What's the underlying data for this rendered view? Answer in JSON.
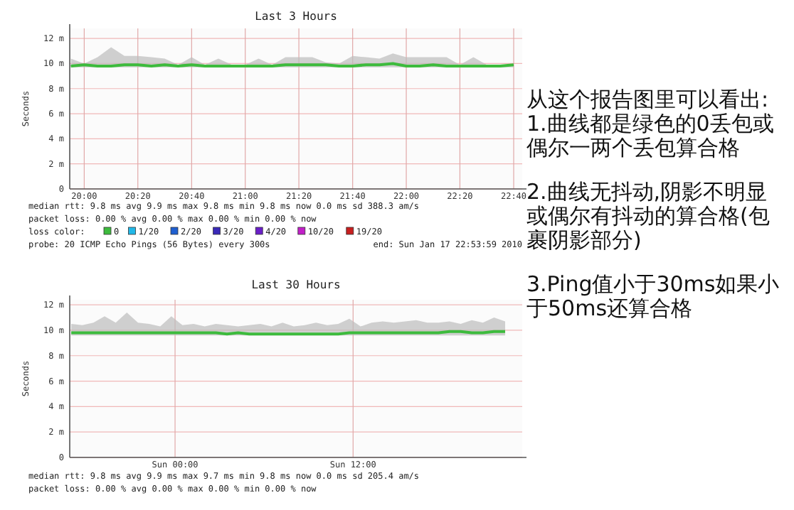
{
  "chart_data": [
    {
      "type": "line",
      "title": "Last 3 Hours",
      "ylabel": "Seconds",
      "legend_title": "loss color:",
      "xlim": [
        19.91,
        22.72
      ],
      "xticks": [
        {
          "value": 20,
          "label": "20:00"
        },
        {
          "value": 20.333,
          "label": "20:20"
        },
        {
          "value": 20.667,
          "label": "20:40"
        },
        {
          "value": 21,
          "label": "21:00"
        },
        {
          "value": 21.333,
          "label": "21:20"
        },
        {
          "value": 21.667,
          "label": "21:40"
        },
        {
          "value": 22,
          "label": "22:00"
        },
        {
          "value": 22.333,
          "label": "22:20"
        },
        {
          "value": 22.667,
          "label": "22:40"
        }
      ],
      "ylim": [
        0,
        12.8
      ],
      "yticks": [
        0,
        {
          "value": 2,
          "label": "2 m"
        },
        {
          "value": 4,
          "label": "4 m"
        },
        {
          "value": 6,
          "label": "6 m"
        },
        {
          "value": 8,
          "label": "8 m"
        },
        {
          "value": 10,
          "label": "10 m"
        },
        {
          "value": 12,
          "label": "12 m"
        }
      ],
      "grid": true,
      "legend": "bottom",
      "series": [
        {
          "name": "0",
          "color": "#3dbb3d",
          "x": [
            19.917,
            20,
            20.083,
            20.167,
            20.25,
            20.333,
            20.417,
            20.5,
            20.583,
            20.667,
            20.75,
            20.833,
            20.917,
            21,
            21.083,
            21.167,
            21.25,
            21.333,
            21.417,
            21.5,
            21.583,
            21.667,
            21.75,
            21.833,
            21.917,
            22,
            22.083,
            22.167,
            22.25,
            22.333,
            22.417,
            22.5,
            22.583,
            22.667
          ],
          "values": [
            9.8,
            9.9,
            9.8,
            9.8,
            9.9,
            9.9,
            9.8,
            9.9,
            9.8,
            9.9,
            9.8,
            9.8,
            9.8,
            9.8,
            9.8,
            9.8,
            9.9,
            9.9,
            9.9,
            9.9,
            9.8,
            9.8,
            9.9,
            9.9,
            10.0,
            9.8,
            9.8,
            9.9,
            9.8,
            9.8,
            9.8,
            9.8,
            9.8,
            9.9
          ],
          "lower": [
            9.7,
            9.7,
            9.7,
            9.7,
            9.7,
            9.7,
            9.7,
            9.7,
            9.7,
            9.7,
            9.7,
            9.7,
            9.7,
            9.7,
            9.7,
            9.7,
            9.7,
            9.7,
            9.7,
            9.7,
            9.7,
            9.7,
            9.7,
            9.7,
            9.7,
            9.7,
            9.7,
            9.7,
            9.7,
            9.7,
            9.7,
            9.7,
            9.7,
            9.7
          ],
          "upper": [
            10.4,
            10.0,
            10.5,
            11.3,
            10.6,
            10.6,
            10.5,
            10.4,
            9.9,
            10.5,
            9.9,
            10.4,
            9.9,
            9.9,
            10.4,
            9.9,
            10.5,
            10.5,
            10.5,
            10.1,
            10.0,
            10.6,
            10.5,
            10.4,
            10.8,
            10.5,
            10.5,
            10.5,
            10.5,
            9.9,
            10.5,
            9.9,
            9.9,
            9.9
          ]
        },
        {
          "name": "1/20",
          "color": "#22b8e8"
        },
        {
          "name": "2/20",
          "color": "#1f5fd0"
        },
        {
          "name": "3/20",
          "color": "#3a2ab8"
        },
        {
          "name": "4/20",
          "color": "#6a1fc8"
        },
        {
          "name": "10/20",
          "color": "#c21fc8"
        },
        {
          "name": "19/20",
          "color": "#c81f1f"
        }
      ],
      "annotations": [
        "median rtt:   9.8 ms avg   9.9 ms max   9.8 ms min   9.8 ms now   0.0 ms sd   388.3   am/s",
        "packet loss: 0.00 % avg   0.00 % max   0.00 % min   0.00 % now",
        "probe:       20 ICMP Echo Pings (56 Bytes) every 300s",
        "end: Sun Jan 17 22:53:59 2010"
      ]
    },
    {
      "type": "line",
      "title": "Last 30 Hours",
      "ylabel": "Seconds",
      "xlim": [
        "2010-01-16T16:54",
        "2010-01-17T23:24"
      ],
      "xticks": [
        {
          "value": "2010-01-17T00:00",
          "label": "Sun 00:00"
        },
        {
          "value": "2010-01-17T12:00",
          "label": "Sun 12:00"
        }
      ],
      "ylim": [
        0,
        12.4
      ],
      "yticks": [
        0,
        {
          "value": 2,
          "label": "2 m"
        },
        {
          "value": 4,
          "label": "4 m"
        },
        {
          "value": 6,
          "label": "6 m"
        },
        {
          "value": 8,
          "label": "8 m"
        },
        {
          "value": 10,
          "label": "10 m"
        },
        {
          "value": 12,
          "label": "12 m"
        }
      ],
      "grid": true,
      "series": [
        {
          "color": "#3dbb3d",
          "x": [
            "2010-01-16T17:00",
            "2010-01-16T17:45",
            "2010-01-16T18:30",
            "2010-01-16T19:15",
            "2010-01-16T20:00",
            "2010-01-16T20:45",
            "2010-01-16T21:30",
            "2010-01-16T22:15",
            "2010-01-16T23:00",
            "2010-01-16T23:45",
            "2010-01-17T00:30",
            "2010-01-17T01:15",
            "2010-01-17T02:00",
            "2010-01-17T02:45",
            "2010-01-17T03:30",
            "2010-01-17T04:15",
            "2010-01-17T05:00",
            "2010-01-17T05:45",
            "2010-01-17T06:30",
            "2010-01-17T07:15",
            "2010-01-17T08:00",
            "2010-01-17T08:45",
            "2010-01-17T09:30",
            "2010-01-17T10:15",
            "2010-01-17T11:00",
            "2010-01-17T11:45",
            "2010-01-17T12:30",
            "2010-01-17T13:15",
            "2010-01-17T14:00",
            "2010-01-17T14:45",
            "2010-01-17T15:30",
            "2010-01-17T16:15",
            "2010-01-17T17:00",
            "2010-01-17T17:45",
            "2010-01-17T18:30",
            "2010-01-17T19:15",
            "2010-01-17T20:00",
            "2010-01-17T20:45",
            "2010-01-17T21:30",
            "2010-01-17T22:15"
          ],
          "values": [
            9.8,
            9.8,
            9.8,
            9.8,
            9.8,
            9.8,
            9.8,
            9.8,
            9.8,
            9.8,
            9.8,
            9.8,
            9.8,
            9.8,
            9.7,
            9.8,
            9.7,
            9.7,
            9.7,
            9.7,
            9.7,
            9.7,
            9.7,
            9.7,
            9.7,
            9.8,
            9.8,
            9.8,
            9.8,
            9.8,
            9.8,
            9.8,
            9.8,
            9.8,
            9.9,
            9.9,
            9.8,
            9.8,
            9.9,
            9.9
          ],
          "lower": [
            9.6,
            9.6,
            9.6,
            9.6,
            9.6,
            9.6,
            9.6,
            9.6,
            9.6,
            9.6,
            9.6,
            9.6,
            9.6,
            9.6,
            9.6,
            9.6,
            9.6,
            9.6,
            9.6,
            9.6,
            9.6,
            9.6,
            9.6,
            9.6,
            9.6,
            9.6,
            9.6,
            9.6,
            9.6,
            9.6,
            9.6,
            9.6,
            9.6,
            9.6,
            9.6,
            9.6,
            9.6,
            9.6,
            9.6,
            9.6
          ],
          "upper": [
            10.5,
            10.4,
            10.6,
            11.1,
            10.6,
            11.4,
            10.6,
            10.5,
            10.3,
            11.1,
            10.4,
            10.5,
            10.3,
            10.5,
            10.4,
            10.3,
            10.4,
            10.5,
            10.3,
            10.6,
            10.3,
            10.4,
            10.6,
            10.4,
            10.5,
            10.9,
            10.3,
            10.6,
            10.7,
            10.6,
            10.7,
            10.8,
            10.6,
            10.6,
            10.7,
            10.5,
            10.8,
            10.6,
            11.0,
            10.7
          ]
        }
      ],
      "annotations": [
        "median rtt:   9.8 ms avg   9.9 ms max   9.7 ms min   9.8 ms now   0.0 ms sd   205.4   am/s",
        "packet loss: 0.00 % avg   0.00 % max   0.00 % min   0.00 % now"
      ]
    },
    {
      "type": "other",
      "annotations": [
        "从这个报告图里可以看出:",
        "1.曲线都是绿色的0丢包或偶尔一两个丢包算合格",
        "2.曲线无抖动,阴影不明显或偶尔有抖动的算合格(包裹阴影部分)",
        "3.Ping值小于30ms如果小于50ms还算合格"
      ]
    }
  ]
}
